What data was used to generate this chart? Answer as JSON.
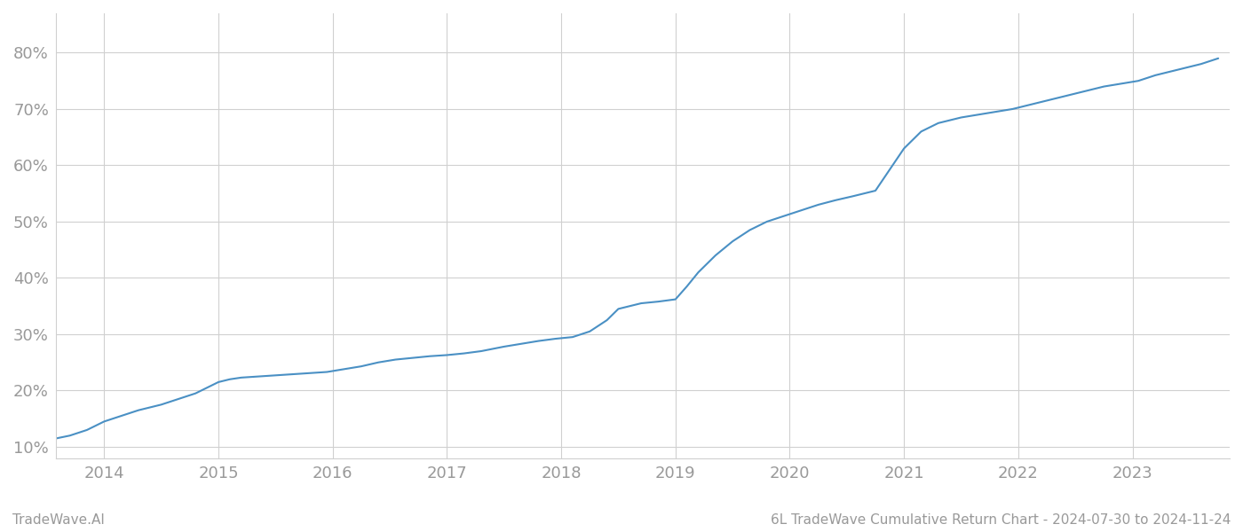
{
  "title": "6L TradeWave Cumulative Return Chart - 2024-07-30 to 2024-11-24",
  "watermark": "TradeWave.AI",
  "line_color": "#4a90c4",
  "background_color": "#ffffff",
  "grid_color": "#d0d0d0",
  "axis_label_color": "#999999",
  "x_years": [
    2014,
    2015,
    2016,
    2017,
    2018,
    2019,
    2020,
    2021,
    2022,
    2023
  ],
  "x_data": [
    2013.58,
    2013.7,
    2013.85,
    2014.0,
    2014.15,
    2014.3,
    2014.5,
    2014.65,
    2014.8,
    2015.0,
    2015.1,
    2015.2,
    2015.35,
    2015.5,
    2015.65,
    2015.8,
    2015.95,
    2016.1,
    2016.25,
    2016.4,
    2016.55,
    2016.7,
    2016.85,
    2017.0,
    2017.15,
    2017.3,
    2017.5,
    2017.65,
    2017.8,
    2017.95,
    2018.1,
    2018.25,
    2018.4,
    2018.5,
    2018.6,
    2018.7,
    2018.85,
    2019.0,
    2019.1,
    2019.2,
    2019.35,
    2019.5,
    2019.65,
    2019.8,
    2019.95,
    2020.1,
    2020.25,
    2020.4,
    2020.55,
    2020.65,
    2020.75,
    2021.0,
    2021.15,
    2021.3,
    2021.5,
    2021.65,
    2021.8,
    2021.95,
    2022.15,
    2022.35,
    2022.55,
    2022.75,
    2022.9,
    2023.05,
    2023.2,
    2023.4,
    2023.6,
    2023.75
  ],
  "y_data": [
    11.5,
    12.0,
    13.0,
    14.5,
    15.5,
    16.5,
    17.5,
    18.5,
    19.5,
    21.5,
    22.0,
    22.3,
    22.5,
    22.7,
    22.9,
    23.1,
    23.3,
    23.8,
    24.3,
    25.0,
    25.5,
    25.8,
    26.1,
    26.3,
    26.6,
    27.0,
    27.8,
    28.3,
    28.8,
    29.2,
    29.5,
    30.5,
    32.5,
    34.5,
    35.0,
    35.5,
    35.8,
    36.2,
    38.5,
    41.0,
    44.0,
    46.5,
    48.5,
    50.0,
    51.0,
    52.0,
    53.0,
    53.8,
    54.5,
    55.0,
    55.5,
    63.0,
    66.0,
    67.5,
    68.5,
    69.0,
    69.5,
    70.0,
    71.0,
    72.0,
    73.0,
    74.0,
    74.5,
    75.0,
    76.0,
    77.0,
    78.0,
    79.0
  ],
  "ylim": [
    8,
    87
  ],
  "xlim": [
    2013.58,
    2023.85
  ],
  "yticks": [
    10,
    20,
    30,
    40,
    50,
    60,
    70,
    80
  ],
  "title_fontsize": 11,
  "watermark_fontsize": 11,
  "tick_fontsize": 13,
  "line_width": 1.5
}
